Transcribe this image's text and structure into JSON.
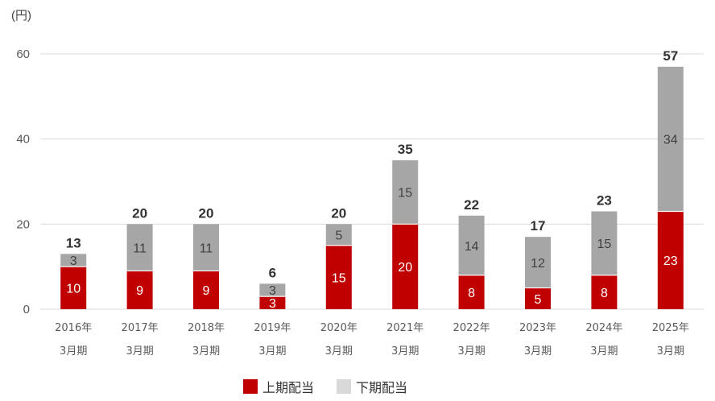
{
  "unit_label": "(円)",
  "colors": {
    "upper": "#C00000",
    "lower": "#A6A6A6",
    "lower_legend": "#D9D9D9",
    "grid": "#D9D9D9",
    "axis_text": "#595959",
    "total_text": "#333333",
    "label_light": "#ffffff",
    "label_dark": "#404040"
  },
  "legend": {
    "upper_label": "上期配当",
    "lower_label": "下期配当"
  },
  "chart_data": {
    "type": "bar",
    "stacked": true,
    "categories": [
      [
        "2016年",
        "3月期"
      ],
      [
        "2017年",
        "3月期"
      ],
      [
        "2018年",
        "3月期"
      ],
      [
        "2019年",
        "3月期"
      ],
      [
        "2020年",
        "3月期"
      ],
      [
        "2021年",
        "3月期"
      ],
      [
        "2022年",
        "3月期"
      ],
      [
        "2023年",
        "3月期"
      ],
      [
        "2024年",
        "3月期"
      ],
      [
        "2025年",
        "3月期"
      ]
    ],
    "series": [
      {
        "name": "上期配当",
        "values": [
          10,
          9,
          9,
          3,
          15,
          20,
          8,
          5,
          8,
          23
        ]
      },
      {
        "name": "下期配当",
        "values": [
          3,
          11,
          11,
          3,
          5,
          15,
          14,
          12,
          15,
          34
        ]
      }
    ],
    "totals": [
      13,
      20,
      20,
      6,
      20,
      35,
      22,
      17,
      23,
      57
    ],
    "yticks": [
      0,
      20,
      40,
      60
    ],
    "ylim": [
      0,
      60
    ],
    "grid": true,
    "legend_position": "bottom"
  }
}
